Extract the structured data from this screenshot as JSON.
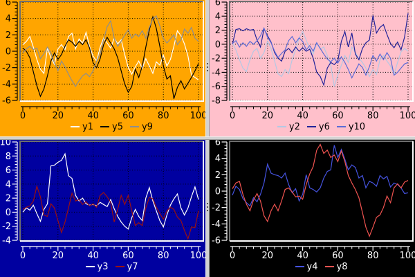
{
  "window": {
    "background": "#c0c0c0",
    "splitter_color": "#d3d3d3",
    "bevel_dark": "#6f6f6f",
    "bevel_light": "#ffffff"
  },
  "chart_data": [
    {
      "type": "line",
      "panel": "top-left",
      "bg": "#ffa500",
      "text_color": "#000000",
      "axis_color": "#000000",
      "grid": true,
      "grid_color": "#000000",
      "xlim": [
        0,
        100
      ],
      "ylim": [
        -6,
        6
      ],
      "xticks": [
        0,
        20,
        40,
        60,
        80,
        100
      ],
      "yticks": [
        6,
        4,
        2,
        0,
        -2,
        -4,
        -6
      ],
      "x_step": 2,
      "legend_position": "bottom",
      "series": [
        {
          "name": "y1",
          "color": "#ffffff",
          "values": [
            0.8,
            1.2,
            1.8,
            0.5,
            -1.0,
            -2.2,
            -2.7,
            0.4,
            -0.8,
            -1.6,
            0.3,
            0.8,
            0.2,
            1.8,
            2.2,
            0.3,
            1.5,
            1.0,
            2.3,
            0.6,
            -0.6,
            -1.2,
            0.5,
            1.6,
            1.0,
            0.4,
            1.6,
            0.9,
            1.4,
            -0.4,
            -2.0,
            -2.8,
            -1.9,
            -1.2,
            -2.1,
            -0.9,
            -1.8,
            -2.7,
            -1.3,
            -1.7,
            -0.5,
            -1.8,
            -1.0,
            0.6,
            2.5,
            1.9,
            0.9,
            -0.6,
            -2.9,
            -3.2,
            -3.5
          ]
        },
        {
          "name": "y5",
          "color": "#000000",
          "values": [
            0.4,
            0.0,
            -0.8,
            -2.5,
            -4.2,
            -5.5,
            -4.6,
            -3.0,
            -1.2,
            -0.2,
            -1.0,
            -0.4,
            0.6,
            1.4,
            1.1,
            0.6,
            1.2,
            0.8,
            1.4,
            0.4,
            -1.4,
            -2.0,
            -0.9,
            0.8,
            1.7,
            1.0,
            0.3,
            -0.8,
            -2.4,
            -4.0,
            -5.0,
            -4.3,
            -2.2,
            -3.2,
            -1.8,
            0.5,
            2.6,
            4.2,
            2.8,
            0.6,
            -1.8,
            -3.4,
            -3.0,
            -5.8,
            -4.4,
            -3.6,
            -4.6,
            -3.9,
            -3.2,
            -2.4,
            -1.5
          ]
        },
        {
          "name": "y9",
          "color": "#8e8e8e",
          "values": [
            -0.2,
            0.3,
            0.6,
            0.2,
            0.4,
            -0.9,
            -0.3,
            0.5,
            -0.2,
            -1.4,
            -2.4,
            -1.2,
            -1.9,
            -2.8,
            -3.6,
            -4.3,
            -3.6,
            -3.0,
            -2.7,
            -3.1,
            -2.4,
            -1.2,
            -0.3,
            1.4,
            3.0,
            3.7,
            1.6,
            0.6,
            1.2,
            2.0,
            2.6,
            1.6,
            2.1,
            1.8,
            2.5,
            1.6,
            2.9,
            4.0,
            4.3,
            3.1,
            1.6,
            1.0,
            1.5,
            2.0,
            0.8,
            1.4,
            2.7,
            2.2,
            2.9,
            1.6,
            1.2
          ]
        }
      ]
    },
    {
      "type": "line",
      "panel": "top-right",
      "bg": "#ffc0cb",
      "text_color": "#000000",
      "axis_color": "#000000",
      "grid": true,
      "grid_color": "#000000",
      "xlim": [
        0,
        100
      ],
      "ylim": [
        -8,
        6
      ],
      "xticks": [
        0,
        20,
        40,
        60,
        80,
        100
      ],
      "yticks": [
        6,
        4,
        2,
        0,
        -2,
        -4,
        -6,
        -8
      ],
      "x_step": 2,
      "legend_position": "bottom",
      "series": [
        {
          "name": "y2",
          "color": "#b4c8e4",
          "values": [
            0.2,
            -0.8,
            -2.2,
            -3.4,
            -3.9,
            -2.2,
            -1.0,
            -0.6,
            -2.0,
            -1.2,
            0.4,
            -0.6,
            -2.4,
            -4.2,
            -4.6,
            -3.6,
            -4.2,
            -2.2,
            -0.8,
            0.9,
            1.8,
            0.6,
            -0.7,
            -1.4,
            0.2,
            -0.7,
            -0.4,
            -1.6,
            -3.0,
            -6.0,
            -4.4,
            -3.0,
            -1.6,
            -2.6,
            -0.4,
            -1.2,
            -2.0,
            -2.6,
            -3.4,
            -4.6,
            -3.6,
            -4.3,
            -2.2,
            -1.6,
            -2.4,
            -3.1,
            -4.3,
            -2.6,
            -1.1,
            -0.6,
            -1.0
          ]
        },
        {
          "name": "y6",
          "color": "#222299",
          "values": [
            0.0,
            2.1,
            2.2,
            1.9,
            2.2,
            2.0,
            2.1,
            0.6,
            -0.4,
            2.2,
            1.2,
            0.3,
            -1.2,
            -2.0,
            -2.4,
            -1.0,
            -0.6,
            -1.2,
            -0.4,
            -1.0,
            -0.5,
            -1.0,
            -0.7,
            -2.0,
            -4.0,
            -4.6,
            -5.8,
            -3.4,
            -2.6,
            -2.9,
            -2.4,
            0.4,
            1.8,
            -0.4,
            1.6,
            -1.4,
            -2.2,
            -0.6,
            0.2,
            0.6,
            4.1,
            1.6,
            2.4,
            2.8,
            1.4,
            0.1,
            -0.5,
            0.3,
            -0.8,
            1.0,
            4.4
          ]
        },
        {
          "name": "y10",
          "color": "#5c6bd6",
          "values": [
            0.1,
            0.5,
            -0.4,
            0.2,
            -0.3,
            0.4,
            0.0,
            0.5,
            1.2,
            2.3,
            1.0,
            0.2,
            -1.0,
            -1.9,
            -1.3,
            -0.8,
            0.5,
            1.1,
            0.2,
            0.9,
            0.4,
            -0.8,
            -0.2,
            -1.0,
            0.2,
            -0.6,
            -1.4,
            -2.1,
            -2.5,
            -2.0,
            -2.7,
            -1.8,
            -2.6,
            -3.6,
            -4.8,
            -3.8,
            -2.8,
            -3.3,
            -4.4,
            -3.2,
            -1.6,
            -2.4,
            -1.4,
            -2.2,
            -1.2,
            -2.0,
            -4.4,
            -4.0,
            -3.4,
            -2.8,
            -2.6
          ]
        }
      ]
    },
    {
      "type": "line",
      "panel": "bottom-left",
      "bg": "#0000a0",
      "text_color": "#ffffff",
      "axis_color": "#ffffff",
      "grid": true,
      "grid_color": "#000000",
      "xlim": [
        0,
        100
      ],
      "ylim": [
        -4,
        10
      ],
      "xticks": [
        0,
        20,
        40,
        60,
        80,
        100
      ],
      "yticks": [
        10,
        8,
        6,
        4,
        2,
        0,
        -2,
        -4
      ],
      "x_step": 2,
      "legend_position": "bottom",
      "series": [
        {
          "name": "y3",
          "color": "#ffffff",
          "values": [
            0.0,
            0.6,
            0.3,
            1.0,
            -0.2,
            -1.3,
            0.4,
            1.2,
            6.6,
            6.7,
            7.1,
            7.4,
            8.3,
            5.2,
            4.8,
            2.4,
            1.6,
            2.0,
            1.2,
            1.0,
            1.1,
            0.9,
            1.4,
            1.1,
            0.8,
            1.8,
            0.5,
            -0.6,
            -1.4,
            -2.0,
            -2.4,
            -0.8,
            0.4,
            -0.6,
            -1.2,
            2.0,
            3.5,
            1.6,
            0.2,
            -1.2,
            -2.1,
            -0.4,
            1.0,
            1.9,
            2.6,
            0.6,
            -0.4,
            0.6,
            2.2,
            3.6,
            1.8
          ]
        },
        {
          "name": "y7",
          "color": "#991111",
          "values": [
            0.4,
            0.7,
            0.9,
            1.6,
            3.7,
            2.2,
            -0.4,
            -0.6,
            1.2,
            0.6,
            -1.2,
            -2.9,
            -1.4,
            0.6,
            2.7,
            1.6,
            1.8,
            1.1,
            1.5,
            0.9,
            1.2,
            0.7,
            2.4,
            2.8,
            2.2,
            1.4,
            -1.4,
            0.4,
            2.4,
            1.1,
            2.4,
            0.2,
            -1.9,
            -1.5,
            -1.9,
            0.6,
            2.1,
            1.9,
            0.7,
            -0.2,
            -1.0,
            0.2,
            0.7,
            0.4,
            -0.7,
            -1.2,
            -2.6,
            -3.8,
            -2.1,
            -2.2,
            0.2
          ]
        }
      ]
    },
    {
      "type": "line",
      "panel": "bottom-right",
      "bg": "#000000",
      "text_color": "#ffffff",
      "axis_color": "#ffffff",
      "grid": false,
      "grid_color": "#000000",
      "xlim": [
        0,
        100
      ],
      "ylim": [
        -6,
        6
      ],
      "xticks": [
        0,
        20,
        40,
        60,
        80,
        100
      ],
      "yticks": [
        6,
        4,
        2,
        0,
        -2,
        -4,
        -6
      ],
      "x_step": 2,
      "legend_position": "bottom",
      "series": [
        {
          "name": "y4",
          "color": "#4553e0",
          "values": [
            -0.5,
            0.6,
            0.2,
            -0.9,
            -1.4,
            -1.8,
            -0.8,
            -1.3,
            -0.4,
            1.0,
            3.3,
            2.2,
            2.0,
            1.9,
            1.6,
            2.2,
            0.8,
            -0.2,
            0.3,
            -1.2,
            -0.4,
            2.0,
            0.4,
            0.2,
            -0.1,
            0.4,
            1.6,
            2.4,
            2.6,
            5.6,
            4.1,
            5.1,
            3.9,
            2.6,
            3.2,
            2.9,
            1.6,
            1.9,
            0.4,
            1.2,
            1.0,
            0.6,
            1.9,
            1.5,
            1.8,
            0.5,
            1.0,
            0.8,
            0.4,
            -0.3,
            -0.2
          ]
        },
        {
          "name": "y8",
          "color": "#ef5350",
          "values": [
            0.3,
            1.0,
            1.2,
            -0.4,
            -1.6,
            -2.4,
            -1.1,
            -0.3,
            -1.2,
            -3.0,
            -3.7,
            -2.4,
            -1.6,
            -2.4,
            -1.2,
            0.2,
            0.4,
            -0.1,
            -0.7,
            -0.6,
            -1.0,
            0.8,
            2.1,
            3.0,
            5.0,
            5.7,
            4.6,
            5.0,
            4.1,
            4.4,
            3.6,
            4.9,
            3.6,
            1.9,
            1.0,
            0.2,
            -0.8,
            -2.6,
            -4.4,
            -5.5,
            -4.4,
            -3.2,
            -2.9,
            -2.0,
            -0.6,
            -1.4,
            0.4,
            0.9,
            0.4,
            1.1,
            1.3
          ]
        }
      ]
    }
  ]
}
